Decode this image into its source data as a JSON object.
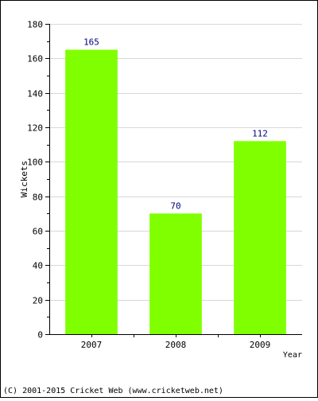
{
  "chart_data": {
    "type": "bar",
    "title": "",
    "xlabel": "Year",
    "ylabel": "Wickets",
    "categories": [
      "2007",
      "2008",
      "2009"
    ],
    "values": [
      165,
      70,
      112
    ],
    "data_labels": [
      "165",
      "70",
      "112"
    ],
    "ylim": [
      0,
      180
    ],
    "yticks": [
      0,
      20,
      40,
      60,
      80,
      100,
      120,
      140,
      160,
      180
    ],
    "ytick_labels": [
      "0",
      "20",
      "40",
      "60",
      "80",
      "100",
      "120",
      "140",
      "160",
      "180"
    ],
    "grid": true,
    "legend": "none",
    "colors": {
      "bar": "#80ff00",
      "data_label": "#000080",
      "grid": "#d8d8d8",
      "axis": "#000000",
      "text": "#000000",
      "border": "#000000"
    }
  },
  "footer": {
    "copyright": "(C) 2001-2015 Cricket Web (www.cricketweb.net)"
  }
}
